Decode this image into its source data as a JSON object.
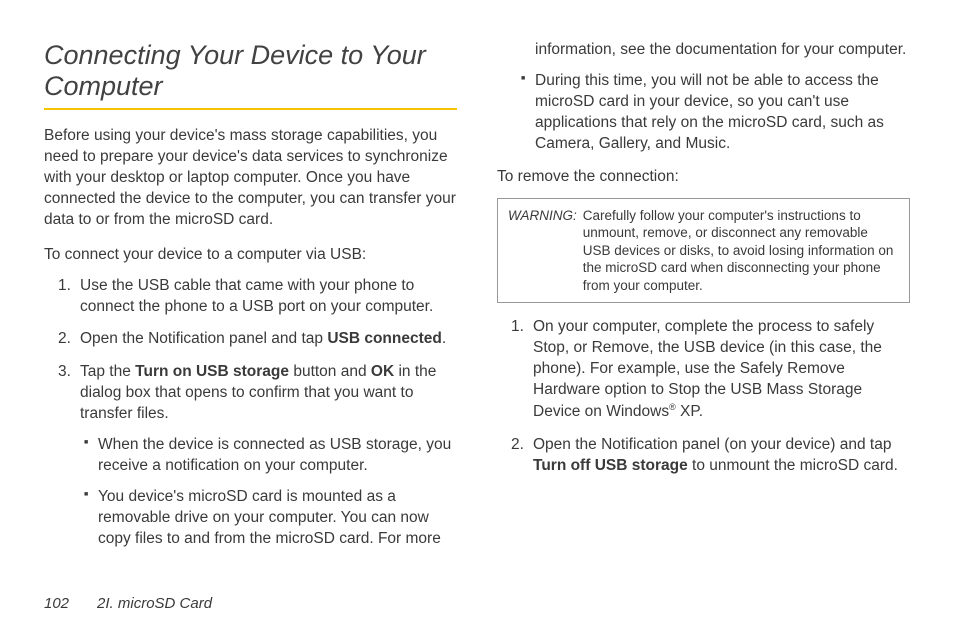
{
  "heading": "Connecting Your Device to Your Computer",
  "intro": "Before using your device's mass storage capabilities, you need to prepare your device's data services to synchronize with your desktop or laptop computer. Once you have connected the device to the computer, you can transfer your data to or from the microSD card.",
  "subhead_connect": "To connect your device to a computer via USB:",
  "steps_connect": {
    "s1": "Use the USB cable that came with your phone to connect the phone to a USB port on your computer.",
    "s2_a": "Open the Notification panel and tap ",
    "s2_b": "USB connected",
    "s2_c": ".",
    "s3_a": "Tap the ",
    "s3_b": "Turn on USB storage",
    "s3_c": " button and ",
    "s3_d": "OK",
    "s3_e": " in the dialog box that opens to confirm that you want to transfer files.",
    "sub1": "When the device is connected as USB storage, you receive a notification on your computer.",
    "sub2": "You device's microSD card is mounted as a removable drive on your computer. You can now copy files to and from the microSD card. For more"
  },
  "col2_cont": "information, see the documentation for your computer.",
  "col2_sub": "During this time, you will not be able to access the microSD card in your device, so you can't use applications that rely on the microSD card, such as Camera, Gallery, and Music.",
  "subhead_remove": "To remove the connection:",
  "warning_label": "WARNING:",
  "warning_text": "Carefully follow your computer's instructions to unmount, remove, or disconnect any removable USB devices or disks, to avoid losing information on the microSD card when disconnecting your phone from your computer.",
  "steps_remove": {
    "s1_a": "On your computer, complete the process to safely Stop, or Remove, the USB device (in this case, the phone). For example, use the Safely Remove Hardware option to Stop the USB Mass Storage Device on Windows",
    "s1_b": "®",
    "s1_c": " XP.",
    "s2_a": "Open the Notification panel (on your device) and tap ",
    "s2_b": "Turn off USB storage",
    "s2_c": " to unmount the microSD card."
  },
  "footer": {
    "page": "102",
    "section": "2I. microSD Card"
  }
}
